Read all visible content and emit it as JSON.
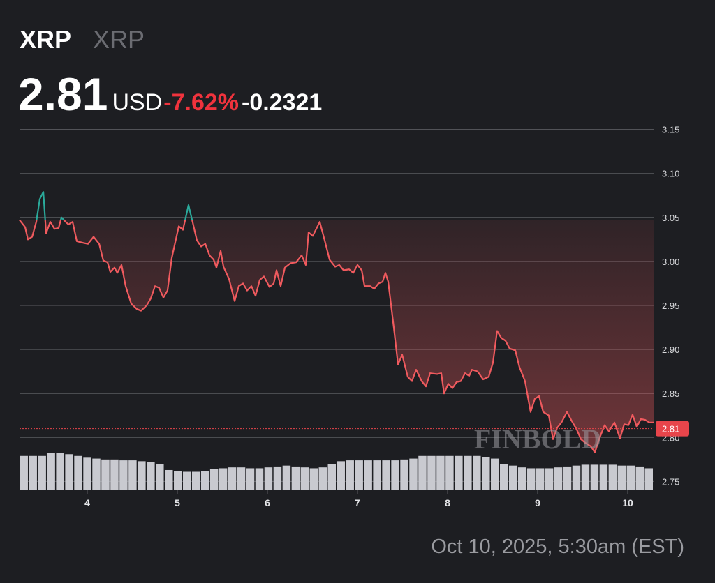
{
  "chart_data": {
    "type": "line",
    "title": "XRP",
    "subtitle": "XRP",
    "currency": "USD",
    "change_percent": "-7.62%",
    "change_abs": "-0.2321",
    "timestamp": "Oct 10, 2025, 5:30am (EST)",
    "watermark": "FINBOLD",
    "price_line": 2.81,
    "up_color": "#2aa99a",
    "down_color": "#f05a5e",
    "price_line_color": "#e8454b",
    "grid": true,
    "xlim": [
      3.248,
      10.287
    ],
    "ylim": [
      2.74,
      3.16
    ],
    "xticks": [
      4,
      5,
      6,
      7,
      8,
      9,
      10
    ],
    "yticks": [
      2.75,
      {
        "value": 2.8,
        "label": "2.80"
      },
      2.85,
      {
        "value": 2.9,
        "label": "2.90"
      },
      2.95,
      {
        "value": 3,
        "label": "3.00"
      },
      3.05,
      {
        "value": 3.1,
        "label": "3.10"
      },
      3.15
    ],
    "x": [
      3.248,
      3.31,
      3.341,
      3.388,
      3.434,
      3.473,
      3.512,
      3.543,
      3.589,
      3.636,
      3.682,
      3.713,
      3.76,
      3.791,
      3.837,
      3.884,
      3.961,
      4.008,
      4.07,
      4.132,
      4.178,
      4.225,
      4.256,
      4.302,
      4.333,
      4.38,
      4.426,
      4.488,
      4.55,
      4.597,
      4.659,
      4.705,
      4.752,
      4.798,
      4.845,
      4.891,
      4.938,
      5.016,
      5.062,
      5.124,
      5.171,
      5.217,
      5.264,
      5.31,
      5.357,
      5.403,
      5.434,
      5.481,
      5.512,
      5.574,
      5.636,
      5.682,
      5.729,
      5.775,
      5.822,
      5.868,
      5.915,
      5.961,
      6.023,
      6.07,
      6.101,
      6.147,
      6.194,
      6.256,
      6.318,
      6.38,
      6.426,
      6.457,
      6.504,
      6.581,
      6.643,
      6.69,
      6.752,
      6.798,
      6.845,
      6.907,
      6.953,
      7.0,
      7.047,
      7.078,
      7.14,
      7.186,
      7.233,
      7.279,
      7.31,
      7.341,
      7.403,
      7.45,
      7.496,
      7.558,
      7.605,
      7.651,
      7.713,
      7.76,
      7.806,
      7.884,
      7.93,
      7.961,
      8.008,
      8.054,
      8.101,
      8.147,
      8.194,
      8.24,
      8.271,
      8.333,
      8.395,
      8.457,
      8.504,
      8.55,
      8.597,
      8.643,
      8.69,
      8.752,
      8.798,
      8.86,
      8.922,
      8.969,
      9.016,
      9.062,
      9.124,
      9.171,
      9.217,
      9.264,
      9.326,
      9.372,
      9.434,
      9.481,
      9.527,
      9.589,
      9.636,
      9.682,
      9.744,
      9.791,
      9.853,
      9.915,
      9.961,
      10.008,
      10.054,
      10.101,
      10.147,
      10.194,
      10.24,
      10.287
    ],
    "series": [
      {
        "values": [
          3.047,
          3.039,
          3.025,
          3.028,
          3.045,
          3.071,
          3.079,
          3.032,
          3.045,
          3.037,
          3.038,
          3.05,
          3.045,
          3.042,
          3.045,
          3.023,
          3.021,
          3.02,
          3.028,
          3.02,
          3.001,
          2.999,
          2.988,
          2.993,
          2.987,
          2.996,
          2.972,
          2.952,
          2.946,
          2.944,
          2.95,
          2.958,
          2.972,
          2.97,
          2.959,
          2.967,
          3.004,
          3.04,
          3.036,
          3.064,
          3.044,
          3.024,
          3.017,
          3.02,
          3.007,
          3.002,
          2.993,
          3.012,
          2.994,
          2.98,
          2.955,
          2.972,
          2.975,
          2.967,
          2.972,
          2.961,
          2.979,
          2.983,
          2.971,
          2.975,
          2.99,
          2.972,
          2.993,
          2.998,
          2.999,
          3.007,
          2.996,
          3.033,
          3.029,
          3.045,
          3.021,
          3.002,
          2.994,
          2.996,
          2.99,
          2.991,
          2.987,
          2.996,
          2.99,
          2.972,
          2.972,
          2.969,
          2.975,
          2.977,
          2.987,
          2.977,
          2.925,
          2.883,
          2.894,
          2.869,
          2.864,
          2.877,
          2.864,
          2.858,
          2.873,
          2.872,
          2.873,
          2.85,
          2.861,
          2.856,
          2.863,
          2.864,
          2.873,
          2.87,
          2.877,
          2.875,
          2.866,
          2.869,
          2.885,
          2.921,
          2.913,
          2.91,
          2.901,
          2.899,
          2.88,
          2.864,
          2.829,
          2.844,
          2.847,
          2.829,
          2.825,
          2.798,
          2.811,
          2.817,
          2.829,
          2.82,
          2.809,
          2.798,
          2.794,
          2.79,
          2.783,
          2.798,
          2.814,
          2.807,
          2.817,
          2.799,
          2.815,
          2.814,
          2.826,
          2.812,
          2.821,
          2.82,
          2.817,
          2.817
        ]
      }
    ],
    "volume": {
      "color": "#c9cad0",
      "values": [
        2.779,
        2.779,
        2.779,
        2.782,
        2.782,
        2.781,
        2.779,
        2.777,
        2.776,
        2.775,
        2.775,
        2.774,
        2.774,
        2.773,
        2.772,
        2.77,
        2.763,
        2.762,
        2.761,
        2.761,
        2.762,
        2.764,
        2.765,
        2.766,
        2.766,
        2.765,
        2.765,
        2.766,
        2.767,
        2.768,
        2.767,
        2.766,
        2.765,
        2.766,
        2.77,
        2.773,
        2.774,
        2.774,
        2.774,
        2.774,
        2.774,
        2.774,
        2.775,
        2.776,
        2.779,
        2.779,
        2.779,
        2.779,
        2.779,
        2.779,
        2.779,
        2.778,
        2.776,
        2.77,
        2.768,
        2.766,
        2.765,
        2.765,
        2.765,
        2.766,
        2.767,
        2.768,
        2.769,
        2.769,
        2.769,
        2.769,
        2.768,
        2.768,
        2.767,
        2.765
      ]
    }
  }
}
